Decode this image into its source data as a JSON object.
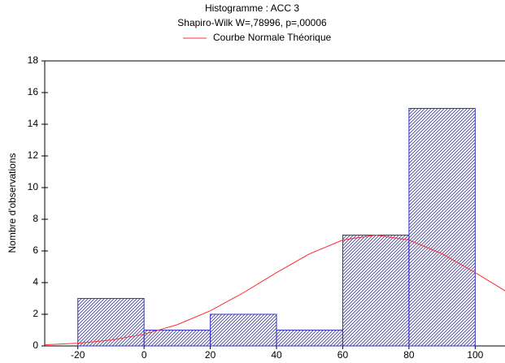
{
  "chart_data": {
    "type": "histogram",
    "title": "Histogramme : ACC 3",
    "subtitle": "Shapiro-Wilk W=,78996, p=,00006",
    "ylabel": "Nombre d'observations",
    "bins": [
      -20,
      0,
      20,
      40,
      60,
      80,
      100
    ],
    "values": [
      3,
      1,
      2,
      1,
      7,
      15
    ],
    "color": "#3333cc",
    "curve": {
      "name": "Courbe Normale Théorique",
      "color": "#ff3030",
      "x": [
        -30,
        -20,
        -10,
        0,
        10,
        20,
        30,
        40,
        50,
        60,
        70,
        80,
        90,
        100,
        110
      ],
      "values": [
        0.07,
        0.17,
        0.37,
        0.74,
        1.34,
        2.22,
        3.36,
        4.63,
        5.82,
        6.69,
        7,
        6.69,
        5.82,
        4.63,
        3.36
      ]
    },
    "xlim": [
      -30,
      109
    ],
    "xticks": [
      -20,
      0,
      20,
      40,
      60,
      80,
      100
    ],
    "ylim": [
      0,
      18
    ],
    "yticks": [
      0,
      2,
      4,
      6,
      8,
      10,
      12,
      14,
      16,
      18
    ]
  }
}
